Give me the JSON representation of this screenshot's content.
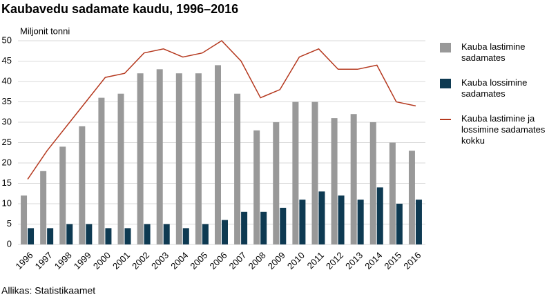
{
  "chart_data": {
    "type": "bar-line",
    "title": "Kaubavedu sadamate kaudu, 1996–2016",
    "y_label": "Miljonit tonni",
    "source": "Allikas: Statistikaamet",
    "categories": [
      "1996",
      "1997",
      "1998",
      "1999",
      "2000",
      "2001",
      "2002",
      "2003",
      "2004",
      "2005",
      "2006",
      "2007",
      "2008",
      "2009",
      "2010",
      "2011",
      "2012",
      "2013",
      "2014",
      "2015",
      "2016"
    ],
    "series": [
      {
        "name": "Kauba lastimine sadamates",
        "color": "#999999",
        "type": "bar",
        "values": [
          12,
          18,
          24,
          29,
          36,
          37,
          42,
          43,
          42,
          42,
          44,
          37,
          28,
          30,
          35,
          35,
          31,
          32,
          30,
          25,
          23
        ]
      },
      {
        "name": "Kauba lossimine sadamates",
        "color": "#0e3a52",
        "type": "bar",
        "values": [
          4,
          4,
          5,
          5,
          4,
          4,
          5,
          5,
          4,
          5,
          6,
          8,
          8,
          9,
          11,
          13,
          12,
          11,
          14,
          10,
          11
        ]
      },
      {
        "name": "Kauba lastimine ja lossimine sadamates kokku",
        "color": "#b5391f",
        "type": "line",
        "values": [
          16,
          23,
          29,
          35,
          41,
          42,
          47,
          48,
          46,
          47,
          50,
          45,
          36,
          38,
          46,
          48,
          43,
          43,
          44,
          35,
          34
        ]
      }
    ],
    "ylim": [
      0,
      50
    ],
    "yticks": [
      0,
      5,
      10,
      15,
      20,
      25,
      30,
      35,
      40,
      45,
      50
    ],
    "grid": true
  }
}
